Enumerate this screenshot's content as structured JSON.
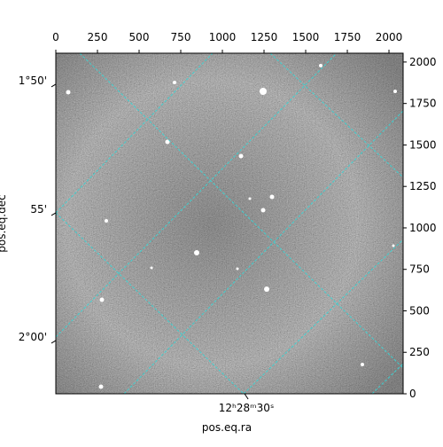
{
  "chart_data": {
    "type": "image",
    "xlabel": "pos.eq.ra",
    "ylabel": "pos.eq.dec",
    "xlim": [
      0,
      2085
    ],
    "ylim": [
      0,
      2053
    ],
    "xticks": [
      0,
      250,
      500,
      750,
      1000,
      1250,
      1500,
      1750,
      2000
    ],
    "yticks": [
      0,
      250,
      500,
      750,
      1000,
      1250,
      1500,
      1750,
      2000
    ],
    "ra_ticks": [
      {
        "value": 1144,
        "label": "12ʰ28ᵐ30ˢ"
      }
    ],
    "dec_ticks": [
      {
        "value": 1866,
        "label": "1°50'"
      },
      {
        "value": 1091,
        "label": "55'"
      },
      {
        "value": 321,
        "label": "2°00'"
      }
    ],
    "grid": true,
    "grid_color": "#3fd0d0"
  }
}
